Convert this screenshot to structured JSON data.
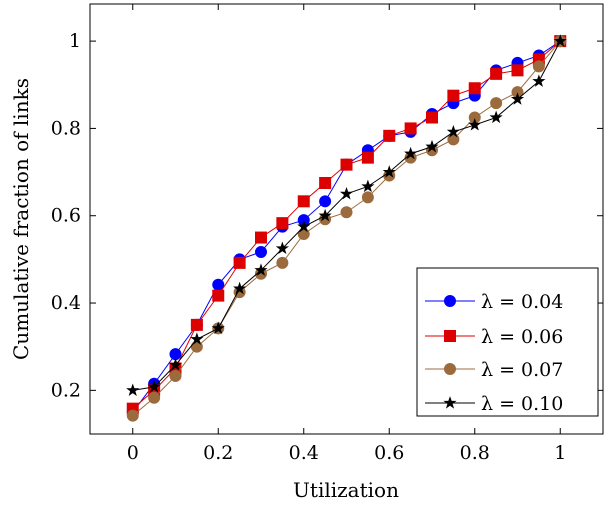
{
  "chart_data": {
    "type": "line",
    "title": "",
    "xlabel": "Utilization",
    "ylabel": "Cumulative fraction of links",
    "xlim": [
      -0.1,
      1.1
    ],
    "ylim": [
      0.1,
      1.085
    ],
    "xticks": [
      0,
      0.2,
      0.4,
      0.6,
      0.8,
      1
    ],
    "xtick_labels": [
      "0",
      "0.2",
      "0.4",
      "0.6",
      "0.8",
      "1"
    ],
    "yticks": [
      0.2,
      0.4,
      0.6,
      0.8,
      1
    ],
    "ytick_labels": [
      "0.2",
      "0.4",
      "0.6",
      "0.8",
      "1"
    ],
    "grid": false,
    "legend_position": "bottom-right",
    "x": [
      0,
      0.05,
      0.1,
      0.15,
      0.2,
      0.25,
      0.3,
      0.35,
      0.4,
      0.45,
      0.5,
      0.55,
      0.6,
      0.65,
      0.7,
      0.75,
      0.8,
      0.85,
      0.9,
      0.95,
      1.0
    ],
    "series": [
      {
        "name": "λ = 0.04",
        "color": "#0000ff",
        "marker": "circle",
        "values": [
          0.15,
          0.215,
          0.283,
          0.35,
          0.442,
          0.5,
          0.517,
          0.575,
          0.59,
          0.633,
          0.717,
          0.75,
          0.783,
          0.792,
          0.833,
          0.858,
          0.875,
          0.933,
          0.95,
          0.967,
          1.0
        ]
      },
      {
        "name": "λ = 0.06",
        "color": "#dd0000",
        "marker": "square",
        "values": [
          0.158,
          0.2,
          0.25,
          0.35,
          0.417,
          0.492,
          0.55,
          0.583,
          0.633,
          0.675,
          0.717,
          0.733,
          0.783,
          0.8,
          0.825,
          0.875,
          0.892,
          0.925,
          0.933,
          0.958,
          1.0
        ]
      },
      {
        "name": "λ = 0.07",
        "color": "#9b6b3d",
        "marker": "circle",
        "values": [
          0.142,
          0.183,
          0.233,
          0.3,
          0.342,
          0.425,
          0.467,
          0.492,
          0.558,
          0.592,
          0.608,
          0.642,
          0.692,
          0.733,
          0.75,
          0.775,
          0.825,
          0.858,
          0.883,
          0.942,
          1.0
        ]
      },
      {
        "name": "λ = 0.10",
        "color": "#000000",
        "marker": "star",
        "values": [
          0.2,
          0.208,
          0.258,
          0.317,
          0.342,
          0.433,
          0.475,
          0.525,
          0.575,
          0.6,
          0.65,
          0.667,
          0.7,
          0.742,
          0.758,
          0.792,
          0.808,
          0.825,
          0.867,
          0.908,
          1.0
        ]
      }
    ]
  }
}
